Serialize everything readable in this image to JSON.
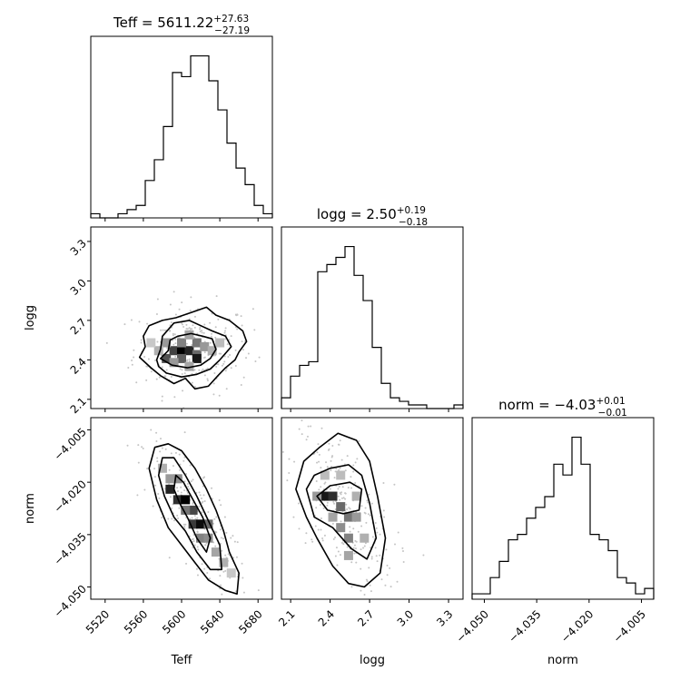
{
  "chart_data": {
    "type": "corner",
    "parameters": [
      {
        "name": "Teff",
        "xlabel": "Teff",
        "title_main": "Teff = 5611.22",
        "title_plus": "+27.63",
        "title_minus": "−27.19",
        "range": [
          5505,
          5695
        ],
        "ticks": [
          5520,
          5560,
          5600,
          5640,
          5680
        ],
        "tick_labels": [
          "5520",
          "5560",
          "5600",
          "5640",
          "5680"
        ],
        "hist_counts": [
          1,
          0,
          0,
          1,
          2,
          3,
          9,
          14,
          22,
          35,
          34,
          39,
          39,
          33,
          26,
          18,
          12,
          8,
          3,
          1
        ]
      },
      {
        "name": "logg",
        "xlabel": "logg",
        "ylabel": "logg",
        "title_main": "logg = 2.50",
        "title_plus": "+0.19",
        "title_minus": "−0.18",
        "range": [
          2.03,
          3.41
        ],
        "ticks": [
          2.1,
          2.4,
          2.7,
          3.0,
          3.3
        ],
        "tick_labels": [
          "2.1",
          "2.4",
          "2.7",
          "3.0",
          "3.3"
        ],
        "hist_counts": [
          3,
          9,
          12,
          13,
          38,
          40,
          42,
          45,
          37,
          30,
          17,
          7,
          3,
          2,
          1,
          1,
          0,
          0,
          0,
          1
        ]
      },
      {
        "name": "norm",
        "xlabel": "norm",
        "ylabel": "norm",
        "title_main": "norm = −4.03",
        "title_plus": "+0.01",
        "title_minus": "−0.01",
        "range": [
          -4.0535,
          -4.0015
        ],
        "ticks": [
          -4.05,
          -4.035,
          -4.02,
          -4.005
        ],
        "tick_labels": [
          "−4.050",
          "−4.035",
          "−4.020",
          "−4.005"
        ],
        "hist_counts": [
          1,
          1,
          4,
          7,
          11,
          12,
          15,
          17,
          19,
          25,
          23,
          30,
          25,
          12,
          11,
          9,
          4,
          3,
          1,
          2
        ]
      }
    ],
    "contours": {
      "logg_vs_Teff": [
        [
          [
            5578,
            2.41
          ],
          [
            5586,
            2.47
          ],
          [
            5588,
            2.55
          ],
          [
            5596,
            2.58
          ],
          [
            5610,
            2.6
          ],
          [
            5622,
            2.58
          ],
          [
            5632,
            2.56
          ],
          [
            5636,
            2.48
          ],
          [
            5630,
            2.41
          ],
          [
            5620,
            2.36
          ],
          [
            5606,
            2.34
          ],
          [
            5590,
            2.36
          ]
        ],
        [
          [
            5574,
            2.4
          ],
          [
            5578,
            2.48
          ],
          [
            5580,
            2.58
          ],
          [
            5592,
            2.68
          ],
          [
            5608,
            2.7
          ],
          [
            5620,
            2.66
          ],
          [
            5632,
            2.62
          ],
          [
            5646,
            2.58
          ],
          [
            5652,
            2.5
          ],
          [
            5640,
            2.4
          ],
          [
            5630,
            2.33
          ],
          [
            5616,
            2.29
          ],
          [
            5600,
            2.27
          ],
          [
            5584,
            2.3
          ],
          [
            5576,
            2.35
          ]
        ],
        [
          [
            5556,
            2.42
          ],
          [
            5562,
            2.5
          ],
          [
            5560,
            2.58
          ],
          [
            5566,
            2.66
          ],
          [
            5580,
            2.7
          ],
          [
            5594,
            2.72
          ],
          [
            5610,
            2.76
          ],
          [
            5626,
            2.8
          ],
          [
            5636,
            2.74
          ],
          [
            5650,
            2.7
          ],
          [
            5664,
            2.62
          ],
          [
            5668,
            2.54
          ],
          [
            5660,
            2.46
          ],
          [
            5656,
            2.4
          ],
          [
            5646,
            2.34
          ],
          [
            5638,
            2.28
          ],
          [
            5628,
            2.2
          ],
          [
            5614,
            2.18
          ],
          [
            5604,
            2.26
          ],
          [
            5592,
            2.22
          ],
          [
            5578,
            2.28
          ],
          [
            5568,
            2.34
          ]
        ]
      ],
      "norm_vs_Teff": [
        [
          [
            5592,
            -4.022
          ],
          [
            5598,
            -4.026
          ],
          [
            5606,
            -4.03
          ],
          [
            5616,
            -4.036
          ],
          [
            5626,
            -4.04
          ],
          [
            5630,
            -4.036
          ],
          [
            5622,
            -4.03
          ],
          [
            5612,
            -4.025
          ],
          [
            5602,
            -4.02
          ],
          [
            5594,
            -4.018
          ]
        ],
        [
          [
            5576,
            -4.018
          ],
          [
            5582,
            -4.024
          ],
          [
            5592,
            -4.03
          ],
          [
            5604,
            -4.034
          ],
          [
            5616,
            -4.04
          ],
          [
            5630,
            -4.045
          ],
          [
            5642,
            -4.045
          ],
          [
            5640,
            -4.038
          ],
          [
            5628,
            -4.031
          ],
          [
            5616,
            -4.024
          ],
          [
            5604,
            -4.018
          ],
          [
            5592,
            -4.013
          ],
          [
            5580,
            -4.013
          ]
        ],
        [
          [
            5566,
            -4.016
          ],
          [
            5574,
            -4.025
          ],
          [
            5586,
            -4.033
          ],
          [
            5600,
            -4.038
          ],
          [
            5614,
            -4.043
          ],
          [
            5628,
            -4.048
          ],
          [
            5646,
            -4.051
          ],
          [
            5658,
            -4.052
          ],
          [
            5660,
            -4.046
          ],
          [
            5650,
            -4.04
          ],
          [
            5644,
            -4.034
          ],
          [
            5636,
            -4.028
          ],
          [
            5626,
            -4.022
          ],
          [
            5614,
            -4.016
          ],
          [
            5600,
            -4.011
          ],
          [
            5586,
            -4.009
          ],
          [
            5572,
            -4.01
          ]
        ]
      ],
      "norm_vs_logg": [
        [
          [
            2.3,
            -4.024
          ],
          [
            2.38,
            -4.028
          ],
          [
            2.5,
            -4.029
          ],
          [
            2.62,
            -4.028
          ],
          [
            2.64,
            -4.022
          ],
          [
            2.55,
            -4.02
          ],
          [
            2.4,
            -4.021
          ]
        ],
        [
          [
            2.22,
            -4.022
          ],
          [
            2.28,
            -4.03
          ],
          [
            2.42,
            -4.033
          ],
          [
            2.56,
            -4.039
          ],
          [
            2.68,
            -4.042
          ],
          [
            2.75,
            -4.036
          ],
          [
            2.7,
            -4.026
          ],
          [
            2.64,
            -4.018
          ],
          [
            2.54,
            -4.015
          ],
          [
            2.4,
            -4.016
          ],
          [
            2.28,
            -4.018
          ]
        ],
        [
          [
            2.14,
            -4.022
          ],
          [
            2.22,
            -4.03
          ],
          [
            2.3,
            -4.036
          ],
          [
            2.42,
            -4.044
          ],
          [
            2.54,
            -4.049
          ],
          [
            2.66,
            -4.05
          ],
          [
            2.78,
            -4.046
          ],
          [
            2.82,
            -4.036
          ],
          [
            2.76,
            -4.024
          ],
          [
            2.7,
            -4.014
          ],
          [
            2.6,
            -4.008
          ],
          [
            2.46,
            -4.006
          ],
          [
            2.32,
            -4.01
          ],
          [
            2.2,
            -4.014
          ]
        ]
      ]
    },
    "density_cells": {
      "logg_vs_Teff": [
        [
          5592,
          2.47,
          0.72
        ],
        [
          5600,
          2.47,
          1.0
        ],
        [
          5608,
          2.47,
          0.85
        ],
        [
          5616,
          2.44,
          0.55
        ],
        [
          5584,
          2.41,
          0.65
        ],
        [
          5600,
          2.41,
          0.6
        ],
        [
          5616,
          2.41,
          0.9
        ],
        [
          5600,
          2.53,
          0.45
        ],
        [
          5616,
          2.53,
          0.5
        ],
        [
          5584,
          2.53,
          0.35
        ],
        [
          5608,
          2.59,
          0.3
        ],
        [
          5624,
          2.5,
          0.35
        ],
        [
          5592,
          2.38,
          0.35
        ],
        [
          5608,
          2.35,
          0.3
        ],
        [
          5632,
          2.47,
          0.25
        ],
        [
          5576,
          2.47,
          0.25
        ],
        [
          5640,
          2.53,
          0.2
        ],
        [
          5568,
          2.53,
          0.15
        ]
      ],
      "norm_vs_Teff": [
        [
          5588,
          -4.022,
          0.85
        ],
        [
          5596,
          -4.025,
          0.8
        ],
        [
          5604,
          -4.025,
          1.0
        ],
        [
          5612,
          -4.028,
          0.7
        ],
        [
          5612,
          -4.032,
          0.75
        ],
        [
          5620,
          -4.032,
          0.95
        ],
        [
          5628,
          -4.032,
          0.55
        ],
        [
          5620,
          -4.036,
          0.45
        ],
        [
          5628,
          -4.036,
          0.4
        ],
        [
          5604,
          -4.028,
          0.5
        ],
        [
          5596,
          -4.019,
          0.4
        ],
        [
          5588,
          -4.019,
          0.35
        ],
        [
          5636,
          -4.04,
          0.3
        ],
        [
          5644,
          -4.043,
          0.25
        ],
        [
          5580,
          -4.016,
          0.25
        ],
        [
          5652,
          -4.046,
          0.15
        ]
      ],
      "norm_vs_logg": [
        [
          2.36,
          -4.024,
          0.9
        ],
        [
          2.42,
          -4.024,
          0.8
        ],
        [
          2.48,
          -4.027,
          0.55
        ],
        [
          2.54,
          -4.03,
          0.5
        ],
        [
          2.6,
          -4.03,
          0.35
        ],
        [
          2.54,
          -4.036,
          0.45
        ],
        [
          2.48,
          -4.033,
          0.4
        ],
        [
          2.42,
          -4.03,
          0.3
        ],
        [
          2.3,
          -4.024,
          0.35
        ],
        [
          2.54,
          -4.041,
          0.3
        ],
        [
          2.66,
          -4.036,
          0.25
        ],
        [
          2.6,
          -4.024,
          0.25
        ],
        [
          2.48,
          -4.018,
          0.2
        ],
        [
          2.36,
          -4.018,
          0.2
        ]
      ]
    }
  }
}
